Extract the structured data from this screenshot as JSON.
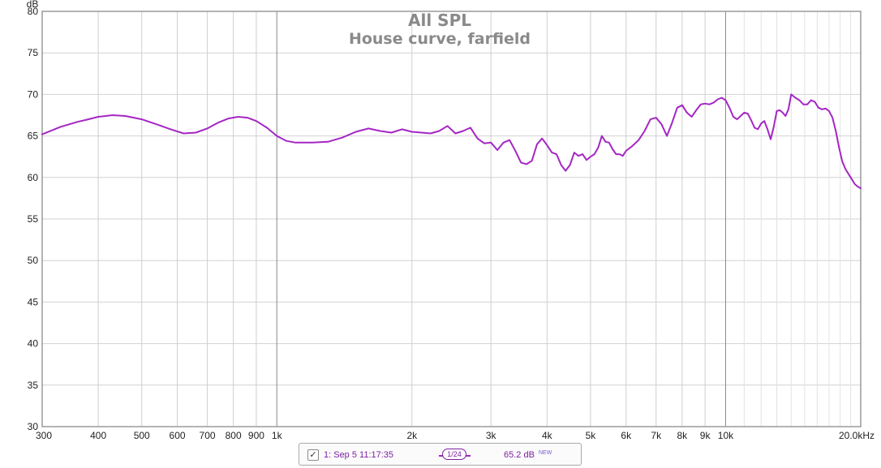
{
  "chart_data": {
    "type": "line",
    "title": "All SPL",
    "subtitle": "House curve, farfield",
    "ylabel": "dB",
    "xlabel": "",
    "x_scale": "log",
    "xlim": [
      300,
      20000
    ],
    "ylim": [
      30,
      80
    ],
    "grid": true,
    "y_ticks": [
      30,
      35,
      40,
      45,
      50,
      55,
      60,
      65,
      70,
      75,
      80
    ],
    "y_tick_labels": [
      "30",
      "35",
      "40",
      "45",
      "50",
      "55",
      "60",
      "65",
      "70",
      "75",
      "80"
    ],
    "x_ticks": [
      300,
      400,
      500,
      600,
      700,
      800,
      900,
      1000,
      2000,
      3000,
      4000,
      5000,
      6000,
      7000,
      8000,
      9000,
      10000,
      20000
    ],
    "x_tick_labels": [
      "300",
      "400",
      "500",
      "600",
      "700",
      "800",
      "900",
      "1k",
      "2k",
      "3k",
      "4k",
      "5k",
      "6k",
      "7k",
      "8k",
      "9k",
      "10k",
      "20.0kHz"
    ],
    "minor_x_ticks": [
      11000,
      12000,
      13000,
      14000,
      15000,
      16000,
      17000,
      18000,
      19000
    ],
    "major_x_ticks": [
      1000,
      10000
    ],
    "series": [
      {
        "color": "#a526c4",
        "x": [
          300,
          330,
          360,
          380,
          400,
          430,
          460,
          500,
          540,
          580,
          620,
          660,
          700,
          740,
          780,
          820,
          860,
          900,
          950,
          1000,
          1050,
          1100,
          1200,
          1300,
          1400,
          1500,
          1600,
          1700,
          1800,
          1900,
          2000,
          2100,
          2200,
          2300,
          2400,
          2500,
          2600,
          2700,
          2800,
          2900,
          3000,
          3100,
          3200,
          3300,
          3400,
          3500,
          3600,
          3700,
          3800,
          3900,
          4000,
          4100,
          4200,
          4300,
          4400,
          4500,
          4600,
          4700,
          4800,
          4900,
          5000,
          5100,
          5200,
          5300,
          5400,
          5500,
          5600,
          5700,
          5800,
          5900,
          6000,
          6200,
          6400,
          6600,
          6800,
          7000,
          7200,
          7400,
          7600,
          7800,
          8000,
          8200,
          8400,
          8600,
          8800,
          9000,
          9200,
          9400,
          9600,
          9800,
          10000,
          10200,
          10400,
          10600,
          10800,
          11000,
          11200,
          11400,
          11600,
          11800,
          12000,
          12200,
          12400,
          12600,
          12800,
          13000,
          13200,
          13400,
          13600,
          13800,
          14000,
          14300,
          14600,
          14900,
          15200,
          15500,
          15800,
          16100,
          16400,
          16700,
          17000,
          17300,
          17600,
          17900,
          18200,
          18500,
          18800,
          19100,
          19400,
          19700,
          20000
        ],
        "y": [
          65.2,
          66.1,
          66.7,
          67.0,
          67.3,
          67.5,
          67.4,
          67.0,
          66.4,
          65.8,
          65.3,
          65.4,
          65.9,
          66.6,
          67.1,
          67.3,
          67.2,
          66.8,
          66.0,
          65.0,
          64.4,
          64.2,
          64.2,
          64.3,
          64.8,
          65.5,
          65.9,
          65.6,
          65.4,
          65.8,
          65.5,
          65.4,
          65.3,
          65.6,
          66.2,
          65.3,
          65.6,
          66.0,
          64.7,
          64.1,
          64.2,
          63.3,
          64.2,
          64.5,
          63.2,
          61.8,
          61.6,
          62.0,
          64.0,
          64.7,
          63.9,
          63.0,
          62.8,
          61.5,
          60.8,
          61.5,
          63.0,
          62.6,
          62.8,
          62.1,
          62.5,
          62.8,
          63.6,
          65.0,
          64.3,
          64.2,
          63.4,
          62.8,
          62.8,
          62.6,
          63.2,
          63.8,
          64.5,
          65.6,
          67.0,
          67.2,
          66.4,
          65.0,
          66.6,
          68.4,
          68.7,
          67.8,
          67.3,
          68.1,
          68.8,
          68.9,
          68.8,
          69.0,
          69.4,
          69.6,
          69.3,
          68.4,
          67.3,
          67.0,
          67.4,
          67.8,
          67.7,
          66.9,
          66.0,
          65.8,
          66.5,
          66.8,
          65.8,
          64.6,
          66.1,
          68.0,
          68.1,
          67.8,
          67.4,
          68.2,
          70.0,
          69.6,
          69.3,
          68.8,
          68.8,
          69.3,
          69.1,
          68.4,
          68.2,
          68.3,
          68.0,
          67.2,
          65.6,
          63.6,
          61.9,
          61.0,
          60.4,
          59.8,
          59.2,
          58.9,
          58.7
        ],
        "data_labels": []
      }
    ]
  },
  "legend": {
    "checkbox_glyph": "✓",
    "entry_label": "1: Sep 5 11:17:35",
    "smoothing_numerator": "1",
    "smoothing_denominator": "24",
    "level": "65.2 dB",
    "badge": "NEW",
    "checked": true
  }
}
